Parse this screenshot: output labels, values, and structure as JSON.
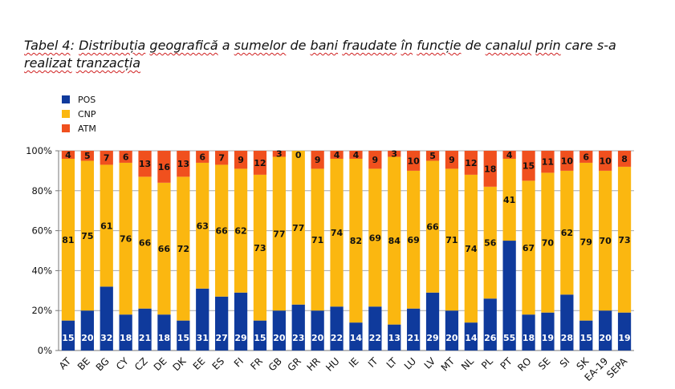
{
  "caption": {
    "parts": [
      {
        "text": "Tabel 4",
        "wavy": true
      },
      {
        "text": ": ",
        "wavy": false
      },
      {
        "text": "Distribuția",
        "wavy": true
      },
      {
        "text": " ",
        "wavy": false
      },
      {
        "text": "geografică",
        "wavy": true
      },
      {
        "text": " a ",
        "wavy": false
      },
      {
        "text": "sumelor",
        "wavy": true
      },
      {
        "text": " de ",
        "wavy": false
      },
      {
        "text": "bani",
        "wavy": true
      },
      {
        "text": " ",
        "wavy": false
      },
      {
        "text": "fraudate",
        "wavy": true
      },
      {
        "text": " ",
        "wavy": false
      },
      {
        "text": "în",
        "wavy": true
      },
      {
        "text": " ",
        "wavy": false
      },
      {
        "text": "funcție",
        "wavy": true
      },
      {
        "text": " de ",
        "wavy": false
      },
      {
        "text": "canalul",
        "wavy": true
      },
      {
        "text": " ",
        "wavy": false
      },
      {
        "text": "prin",
        "wavy": true
      },
      {
        "text": " care s-a ",
        "wavy": false
      },
      {
        "text": "realizat",
        "wavy": true
      },
      {
        "text": " ",
        "wavy": false
      },
      {
        "text": "tranzacția",
        "wavy": true
      }
    ]
  },
  "chart_data": {
    "type": "bar",
    "stacked": true,
    "categories": [
      "AT",
      "BE",
      "BG",
      "CY",
      "CZ",
      "DE",
      "DK",
      "EE",
      "ES",
      "FI",
      "FR",
      "GB",
      "GR",
      "HR",
      "HU",
      "IE",
      "IT",
      "LT",
      "LU",
      "LV",
      "MT",
      "NL",
      "PL",
      "PT",
      "RO",
      "SE",
      "SI",
      "SK",
      "EA-19",
      "SEPA"
    ],
    "series": [
      {
        "name": "POS",
        "color": "#0f3a9c",
        "label_color": "#ffffff",
        "values": [
          15,
          20,
          32,
          18,
          21,
          18,
          15,
          31,
          27,
          29,
          15,
          20,
          23,
          20,
          22,
          14,
          22,
          13,
          21,
          29,
          20,
          14,
          26,
          55,
          18,
          19,
          28,
          15,
          20,
          19
        ]
      },
      {
        "name": "CNP",
        "color": "#fbb710",
        "label_color": "#111111",
        "values": [
          81,
          75,
          61,
          76,
          66,
          66,
          72,
          63,
          66,
          62,
          73,
          77,
          77,
          71,
          74,
          82,
          69,
          84,
          69,
          66,
          71,
          74,
          56,
          41,
          67,
          70,
          62,
          79,
          70,
          73
        ]
      },
      {
        "name": "ATM",
        "color": "#f0501e",
        "label_color": "#111111",
        "values": [
          4,
          5,
          7,
          6,
          13,
          16,
          13,
          6,
          7,
          9,
          12,
          3,
          0,
          9,
          4,
          4,
          9,
          3,
          10,
          5,
          9,
          12,
          18,
          4,
          15,
          11,
          10,
          6,
          10,
          8
        ]
      }
    ],
    "ylim": [
      0,
      100
    ],
    "yticks": [
      "0%",
      "20%",
      "40%",
      "60%",
      "80%",
      "100%"
    ],
    "grid": true,
    "legend_position": "top-left"
  }
}
